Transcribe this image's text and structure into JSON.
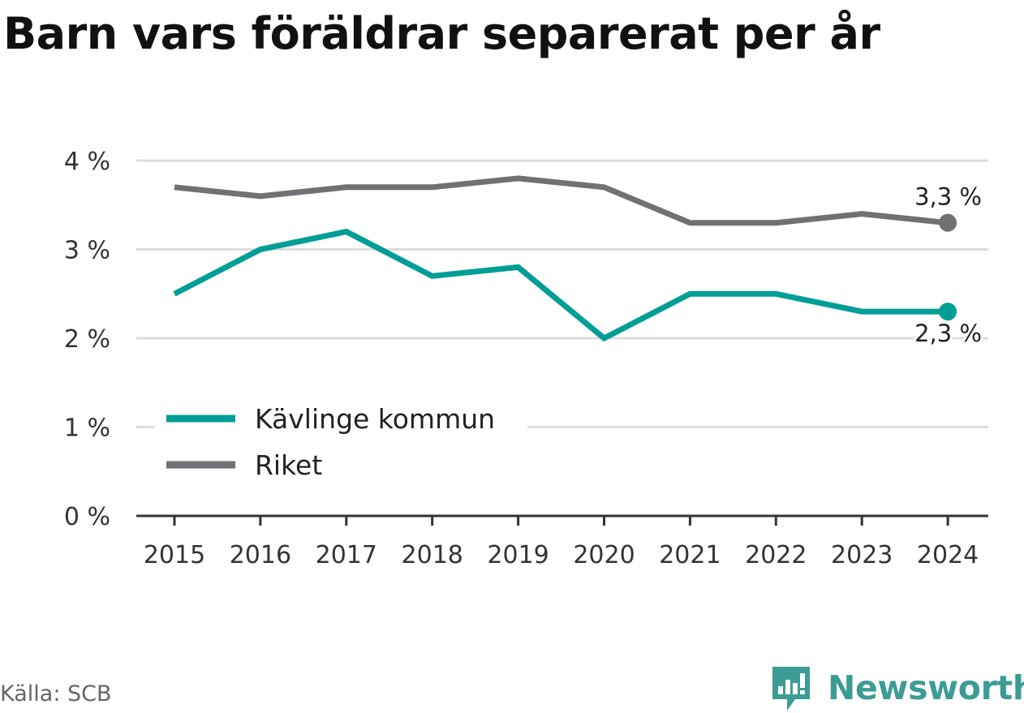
{
  "title": "Barn vars föräldrar separerat per år",
  "source": "Källa: SCB",
  "brand": "Newsworthy",
  "colors": {
    "kavlinge": "#009e96",
    "riket": "#707075",
    "grid": "#dcdcdc",
    "axis": "#333333"
  },
  "chart_data": {
    "type": "line",
    "title": "Barn vars föräldrar separerat per år",
    "x": [
      "2015",
      "2016",
      "2017",
      "2018",
      "2019",
      "2020",
      "2021",
      "2022",
      "2023",
      "2024"
    ],
    "yticks": [
      "0 %",
      "1 %",
      "2 %",
      "3 %",
      "4 %"
    ],
    "ylim": [
      0,
      4
    ],
    "grid": true,
    "legend_position": "lower-left",
    "series": [
      {
        "name": "Kävlinge kommun",
        "color": "#009e96",
        "values": [
          2.5,
          3.0,
          3.2,
          2.7,
          2.8,
          2.0,
          2.5,
          2.5,
          2.3,
          2.3
        ],
        "end_label": "2,3 %"
      },
      {
        "name": "Riket",
        "color": "#707075",
        "values": [
          3.7,
          3.6,
          3.7,
          3.7,
          3.8,
          3.7,
          3.3,
          3.3,
          3.4,
          3.3
        ],
        "end_label": "3,3 %"
      }
    ]
  }
}
